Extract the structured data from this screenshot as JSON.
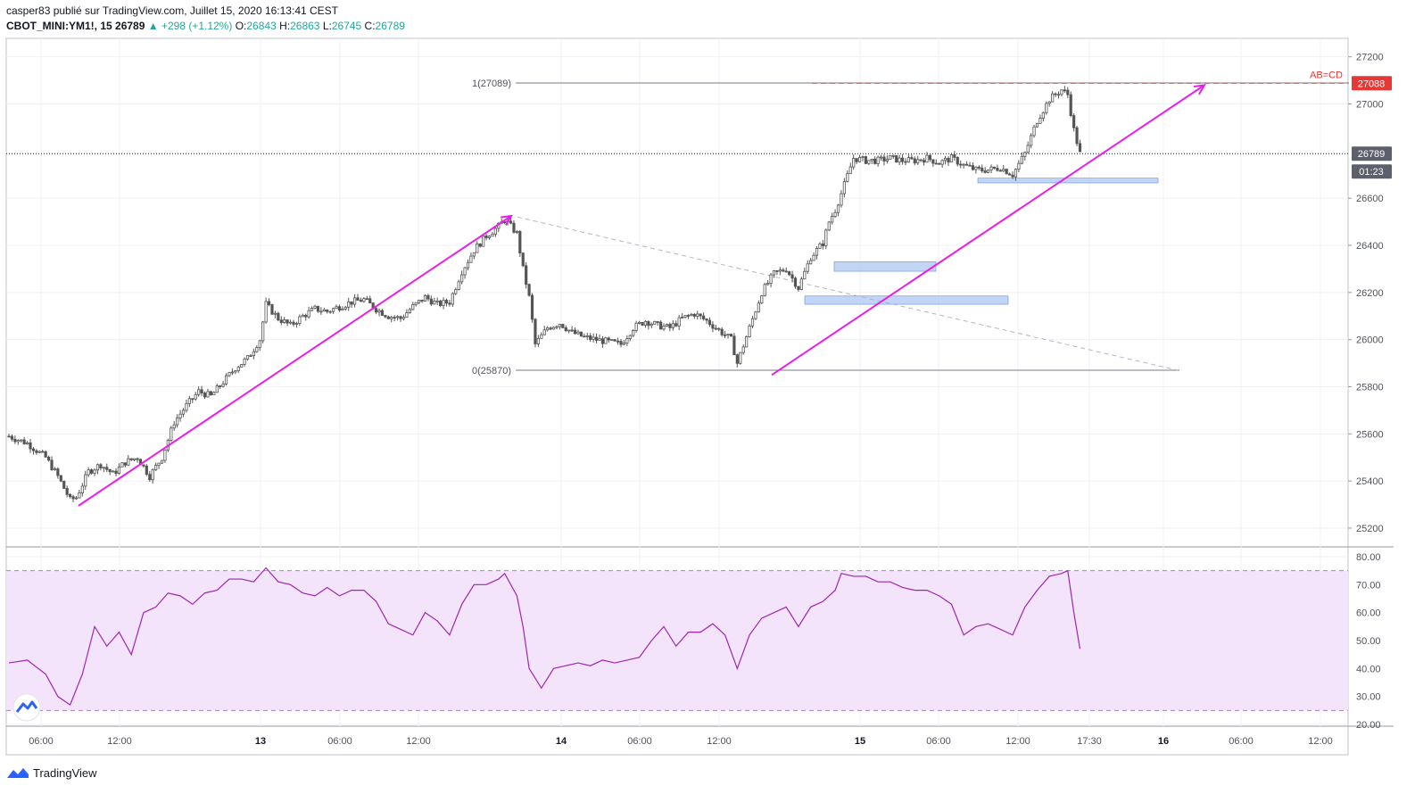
{
  "header": {
    "publisher_line": "casper83 publié sur TradingView.com, Juillet 15, 2020 16:13:41 CEST",
    "symbol_tf": "CBOT_MINI:YM1!, 15",
    "last": "26789",
    "change": "▲ +298 (+1.12%)",
    "o_label": "O:",
    "o": "26843",
    "h_label": "H:",
    "h": "26863",
    "l_label": "L:",
    "l": "26745",
    "c_label": "C:",
    "c": "26789"
  },
  "price_axis": {
    "ticks": [
      "27200",
      "27000",
      "26600",
      "26400",
      "26200",
      "26000",
      "25800",
      "25600",
      "25400",
      "25200"
    ],
    "target_badge": "27088",
    "last_badge": "26789",
    "countdown_badge": "01:23"
  },
  "rsi_axis": {
    "ticks": [
      "80.00",
      "70.00",
      "60.00",
      "50.00",
      "40.00",
      "30.00",
      "20.00"
    ]
  },
  "time_axis": {
    "ticks": [
      "06:00",
      "12:00",
      "13",
      "06:00",
      "12:00",
      "14",
      "06:00",
      "12:00",
      "15",
      "06:00",
      "12:00",
      "17:30",
      "16",
      "06:00",
      "12:00"
    ]
  },
  "annotations": {
    "fib_top": "1(27089)",
    "fib_bottom": "0(25870)",
    "abcd": "AB=CD"
  },
  "colors": {
    "up_candle": "#555555",
    "arrow": "#e91ee8",
    "rsi_line": "#9c27b0",
    "rsi_band": "#f3e4fb",
    "target_line": "#e53935",
    "zone_fill": "#b3cbf2",
    "zone_border": "#5d8fe0"
  },
  "chart_data": {
    "type": "candlestick",
    "series": [
      {
        "close_path": [
          [
            0,
            25590
          ],
          [
            6,
            25560
          ],
          [
            12,
            25500
          ],
          [
            16,
            25420
          ],
          [
            20,
            25320
          ],
          [
            22,
            25330
          ],
          [
            26,
            25440
          ],
          [
            30,
            25470
          ],
          [
            34,
            25430
          ],
          [
            38,
            25480
          ],
          [
            42,
            25500
          ],
          [
            46,
            25420
          ],
          [
            50,
            25500
          ],
          [
            54,
            25650
          ],
          [
            58,
            25720
          ],
          [
            62,
            25780
          ],
          [
            66,
            25760
          ],
          [
            70,
            25820
          ],
          [
            74,
            25880
          ],
          [
            78,
            25920
          ],
          [
            82,
            26000
          ],
          [
            84,
            26150
          ],
          [
            88,
            26090
          ],
          [
            92,
            26060
          ],
          [
            96,
            26100
          ],
          [
            100,
            26130
          ],
          [
            104,
            26120
          ],
          [
            108,
            26140
          ],
          [
            112,
            26160
          ],
          [
            116,
            26170
          ],
          [
            120,
            26130
          ],
          [
            124,
            26100
          ],
          [
            128,
            26090
          ],
          [
            132,
            26140
          ],
          [
            136,
            26180
          ],
          [
            140,
            26150
          ],
          [
            144,
            26160
          ],
          [
            148,
            26290
          ],
          [
            152,
            26380
          ],
          [
            156,
            26440
          ],
          [
            160,
            26480
          ],
          [
            162,
            26510
          ],
          [
            166,
            26450
          ],
          [
            168,
            26300
          ],
          [
            170,
            26180
          ],
          [
            172,
            25980
          ],
          [
            176,
            26050
          ],
          [
            180,
            26070
          ],
          [
            184,
            26030
          ],
          [
            188,
            26010
          ],
          [
            192,
            26000
          ],
          [
            196,
            25990
          ],
          [
            200,
            25980
          ],
          [
            204,
            26050
          ],
          [
            208,
            26080
          ],
          [
            212,
            26060
          ],
          [
            216,
            26050
          ],
          [
            220,
            26090
          ],
          [
            224,
            26110
          ],
          [
            228,
            26080
          ],
          [
            232,
            26040
          ],
          [
            236,
            26000
          ],
          [
            238,
            25900
          ],
          [
            242,
            26050
          ],
          [
            246,
            26200
          ],
          [
            250,
            26280
          ],
          [
            254,
            26300
          ],
          [
            258,
            26220
          ],
          [
            262,
            26350
          ],
          [
            266,
            26410
          ],
          [
            268,
            26500
          ],
          [
            270,
            26550
          ],
          [
            272,
            26620
          ],
          [
            276,
            26770
          ],
          [
            280,
            26760
          ],
          [
            284,
            26760
          ],
          [
            288,
            26770
          ],
          [
            292,
            26760
          ],
          [
            296,
            26760
          ],
          [
            300,
            26770
          ],
          [
            304,
            26750
          ],
          [
            308,
            26770
          ],
          [
            312,
            26740
          ],
          [
            316,
            26720
          ],
          [
            320,
            26720
          ],
          [
            324,
            26730
          ],
          [
            328,
            26700
          ],
          [
            332,
            26790
          ],
          [
            336,
            26930
          ],
          [
            340,
            27020
          ],
          [
            344,
            27060
          ],
          [
            346,
            27040
          ],
          [
            348,
            26890
          ],
          [
            350,
            26789
          ]
        ]
      }
    ],
    "rsi": [
      [
        0,
        42
      ],
      [
        6,
        43
      ],
      [
        12,
        38
      ],
      [
        16,
        30
      ],
      [
        20,
        27
      ],
      [
        24,
        38
      ],
      [
        28,
        55
      ],
      [
        32,
        48
      ],
      [
        36,
        53
      ],
      [
        40,
        45
      ],
      [
        44,
        60
      ],
      [
        48,
        62
      ],
      [
        52,
        67
      ],
      [
        56,
        66
      ],
      [
        60,
        63
      ],
      [
        64,
        67
      ],
      [
        68,
        68
      ],
      [
        72,
        72
      ],
      [
        76,
        72
      ],
      [
        80,
        71
      ],
      [
        84,
        76
      ],
      [
        88,
        71
      ],
      [
        92,
        70
      ],
      [
        96,
        67
      ],
      [
        100,
        66
      ],
      [
        104,
        69
      ],
      [
        108,
        66
      ],
      [
        112,
        68
      ],
      [
        116,
        68
      ],
      [
        120,
        64
      ],
      [
        124,
        56
      ],
      [
        128,
        54
      ],
      [
        132,
        52
      ],
      [
        136,
        60
      ],
      [
        140,
        57
      ],
      [
        144,
        52
      ],
      [
        148,
        63
      ],
      [
        152,
        70
      ],
      [
        156,
        70
      ],
      [
        160,
        72
      ],
      [
        162,
        74
      ],
      [
        166,
        66
      ],
      [
        168,
        55
      ],
      [
        170,
        40
      ],
      [
        174,
        33
      ],
      [
        178,
        40
      ],
      [
        182,
        41
      ],
      [
        186,
        42
      ],
      [
        190,
        41
      ],
      [
        194,
        43
      ],
      [
        198,
        42
      ],
      [
        202,
        43
      ],
      [
        206,
        44
      ],
      [
        210,
        50
      ],
      [
        214,
        55
      ],
      [
        218,
        48
      ],
      [
        222,
        53
      ],
      [
        226,
        53
      ],
      [
        230,
        56
      ],
      [
        234,
        52
      ],
      [
        236,
        46
      ],
      [
        238,
        40
      ],
      [
        242,
        52
      ],
      [
        246,
        58
      ],
      [
        250,
        60
      ],
      [
        254,
        62
      ],
      [
        258,
        55
      ],
      [
        262,
        62
      ],
      [
        266,
        64
      ],
      [
        270,
        68
      ],
      [
        272,
        74
      ],
      [
        276,
        73
      ],
      [
        280,
        73
      ],
      [
        284,
        71
      ],
      [
        288,
        71
      ],
      [
        292,
        69
      ],
      [
        296,
        68
      ],
      [
        300,
        68
      ],
      [
        304,
        66
      ],
      [
        308,
        63
      ],
      [
        312,
        52
      ],
      [
        316,
        55
      ],
      [
        320,
        56
      ],
      [
        324,
        54
      ],
      [
        328,
        52
      ],
      [
        332,
        62
      ],
      [
        336,
        68
      ],
      [
        340,
        73
      ],
      [
        344,
        74
      ],
      [
        346,
        75
      ],
      [
        348,
        60
      ],
      [
        350,
        47
      ]
    ],
    "arrows": [
      [
        [
          88,
          25295
        ],
        [
          573,
          26525
        ]
      ],
      [
        [
          865,
          25850
        ],
        [
          1350,
          27080
        ]
      ]
    ],
    "zones": [
      {
        "x1": 935,
        "x2": 1049,
        "y1": 26330,
        "y2": 26290
      },
      {
        "x1": 902,
        "x2": 1130,
        "y1": 26185,
        "y2": 26150
      },
      {
        "x1": 1096,
        "x2": 1298,
        "y1": 26685,
        "y2": 26665
      }
    ],
    "fib_levels": [
      27089,
      25870
    ],
    "target": 27088,
    "last_price": 26789,
    "rsi_bands": [
      75,
      25
    ]
  }
}
